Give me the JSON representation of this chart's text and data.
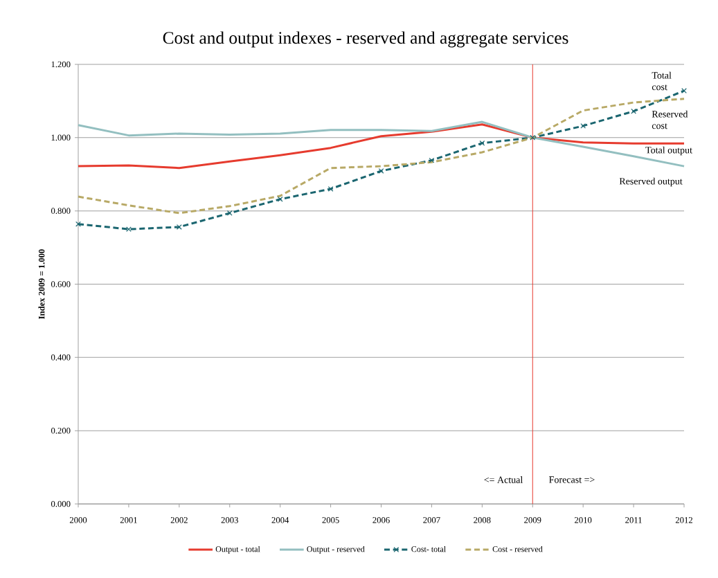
{
  "chart_data": {
    "type": "line",
    "title": "Cost and output indexes - reserved and aggregate services",
    "ylabel": "Index 2009 = 1.000",
    "x": [
      2000,
      2001,
      2002,
      2003,
      2004,
      2005,
      2006,
      2007,
      2008,
      2009,
      2010,
      2011,
      2012
    ],
    "series": [
      {
        "name": "Output - total",
        "color": "#e63b2e",
        "values": [
          0.922,
          0.924,
          0.917,
          0.935,
          0.952,
          0.972,
          1.004,
          1.016,
          1.036,
          1.0,
          0.987,
          0.984,
          0.984
        ]
      },
      {
        "name": "Output - reserved",
        "color": "#93bfc0",
        "values": [
          1.034,
          1.006,
          1.011,
          1.008,
          1.011,
          1.021,
          1.021,
          1.018,
          1.043,
          1.0,
          0.975,
          0.949,
          0.922
        ]
      },
      {
        "name": "Cost- total",
        "color": "#1b6670",
        "marker": "cross",
        "line_style": "dashed",
        "values": [
          0.764,
          0.75,
          0.756,
          0.794,
          0.832,
          0.86,
          0.909,
          0.938,
          0.985,
          1.0,
          1.032,
          1.072,
          1.128
        ]
      },
      {
        "name": "Cost - reserved",
        "color": "#b8a966",
        "line_style": "dashed",
        "values": [
          0.839,
          0.815,
          0.794,
          0.813,
          0.841,
          0.917,
          0.922,
          0.933,
          0.96,
          1.0,
          1.074,
          1.096,
          1.106
        ]
      }
    ],
    "xlim": [
      2000,
      2012
    ],
    "xticks": [
      2000,
      2001,
      2002,
      2003,
      2004,
      2005,
      2006,
      2007,
      2008,
      2009,
      2010,
      2011,
      2012
    ],
    "ylim": [
      0,
      1.2
    ],
    "yticks": [
      {
        "value": 0,
        "label": "0.000"
      },
      {
        "value": 0.2,
        "label": "0.200"
      },
      {
        "value": 0.4,
        "label": "0.400"
      },
      {
        "value": 0.6,
        "label": "0.600"
      },
      {
        "value": 0.8,
        "label": "0.800"
      },
      {
        "value": 1.0,
        "label": "1.000"
      },
      {
        "value": 1.2,
        "label": "1.200"
      }
    ],
    "grid": "y",
    "legend": "bottom",
    "ref_lines": [
      {
        "axis": "x",
        "value": 2009,
        "color": "#e8392f"
      }
    ],
    "annotations": [
      "Total cost",
      "Reserved cost",
      "Total output",
      "Reserved output",
      "<= Actual",
      "Forecast =>"
    ]
  }
}
